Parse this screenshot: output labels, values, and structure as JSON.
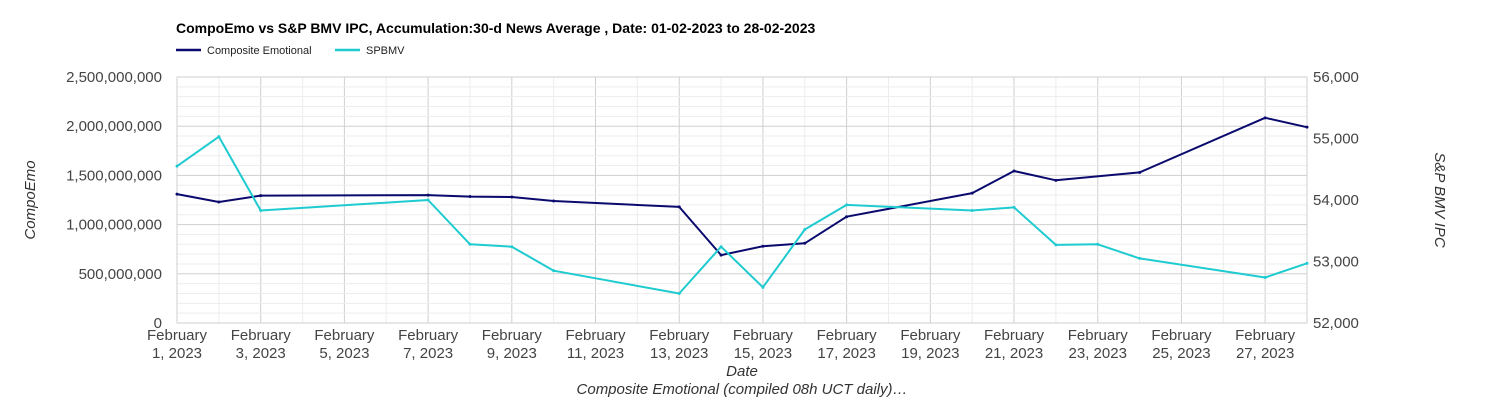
{
  "chart_data": {
    "type": "line",
    "title": "CompoEmo vs S&P BMV IPC, Accumulation:30-d News Average , Date: 01-02-2023 to 28-02-2023",
    "xlabel": "Date",
    "caption": "Composite Emotional (compiled 08h UCT daily)…",
    "ylabel_left": "CompoEmo",
    "ylabel_right": "S&P BMV IPC",
    "x_range": [
      "2023-02-01",
      "2023-02-28"
    ],
    "ylim_left": [
      0,
      2500000000
    ],
    "ylim_right": [
      52000,
      56000
    ],
    "y_left_ticks": [
      "0",
      "500,000,000",
      "1,000,000,000",
      "1,500,000,000",
      "2,000,000,000",
      "2,500,000,000"
    ],
    "y_right_ticks": [
      "52,000",
      "53,000",
      "54,000",
      "55,000",
      "56,000"
    ],
    "x_ticks": [
      {
        "line1": "February",
        "line2": "1, 2023",
        "day": 1
      },
      {
        "line1": "February",
        "line2": "3, 2023",
        "day": 3
      },
      {
        "line1": "February",
        "line2": "5, 2023",
        "day": 5
      },
      {
        "line1": "February",
        "line2": "7, 2023",
        "day": 7
      },
      {
        "line1": "February",
        "line2": "9, 2023",
        "day": 9
      },
      {
        "line1": "February",
        "line2": "11, 2023",
        "day": 11
      },
      {
        "line1": "February",
        "line2": "13, 2023",
        "day": 13
      },
      {
        "line1": "February",
        "line2": "15, 2023",
        "day": 15
      },
      {
        "line1": "February",
        "line2": "17, 2023",
        "day": 17
      },
      {
        "line1": "February",
        "line2": "19, 2023",
        "day": 19
      },
      {
        "line1": "February",
        "line2": "21, 2023",
        "day": 21
      },
      {
        "line1": "February",
        "line2": "23, 2023",
        "day": 23
      },
      {
        "line1": "February",
        "line2": "25, 2023",
        "day": 25
      },
      {
        "line1": "February",
        "line2": "27, 2023",
        "day": 27
      }
    ],
    "grid": true,
    "legend_placement": "top-left",
    "series": [
      {
        "name": "Composite Emotional",
        "axis": "left",
        "color": "#0a0a6e",
        "points": [
          {
            "day": 1,
            "value": 1310000000
          },
          {
            "day": 2,
            "value": 1230000000
          },
          {
            "day": 3,
            "value": 1295000000
          },
          {
            "day": 7,
            "value": 1300000000
          },
          {
            "day": 8,
            "value": 1285000000
          },
          {
            "day": 9,
            "value": 1280000000
          },
          {
            "day": 10,
            "value": 1240000000
          },
          {
            "day": 13,
            "value": 1180000000
          },
          {
            "day": 14,
            "value": 690000000
          },
          {
            "day": 15,
            "value": 780000000
          },
          {
            "day": 16,
            "value": 810000000
          },
          {
            "day": 17,
            "value": 1080000000
          },
          {
            "day": 20,
            "value": 1320000000
          },
          {
            "day": 21,
            "value": 1545000000
          },
          {
            "day": 22,
            "value": 1450000000
          },
          {
            "day": 24,
            "value": 1530000000
          },
          {
            "day": 27,
            "value": 2085000000
          },
          {
            "day": 28,
            "value": 1990000000
          }
        ]
      },
      {
        "name": "SPBMV",
        "axis": "right",
        "color": "#1ecbd0",
        "points": [
          {
            "day": 1,
            "value": 54550
          },
          {
            "day": 2,
            "value": 55030
          },
          {
            "day": 3,
            "value": 53830
          },
          {
            "day": 7,
            "value": 54000
          },
          {
            "day": 8,
            "value": 53280
          },
          {
            "day": 9,
            "value": 53240
          },
          {
            "day": 10,
            "value": 52850
          },
          {
            "day": 13,
            "value": 52480
          },
          {
            "day": 14,
            "value": 53240
          },
          {
            "day": 15,
            "value": 52580
          },
          {
            "day": 16,
            "value": 53520
          },
          {
            "day": 17,
            "value": 53920
          },
          {
            "day": 20,
            "value": 53830
          },
          {
            "day": 21,
            "value": 53880
          },
          {
            "day": 22,
            "value": 53270
          },
          {
            "day": 23,
            "value": 53280
          },
          {
            "day": 24,
            "value": 53050
          },
          {
            "day": 27,
            "value": 52740
          },
          {
            "day": 28,
            "value": 52970
          }
        ]
      }
    ]
  }
}
